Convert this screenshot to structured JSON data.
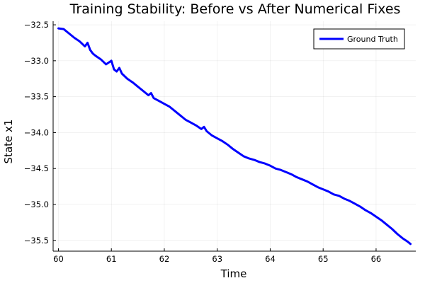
{
  "chart_data": {
    "type": "line",
    "title": "Training Stability: Before vs After Numerical Fixes",
    "xlabel": "Time",
    "ylabel": "State x1",
    "xlim": [
      59.9,
      66.75
    ],
    "ylim": [
      -35.65,
      -32.45
    ],
    "xticks": [
      60,
      61,
      62,
      63,
      64,
      65,
      66
    ],
    "yticks": [
      -32.5,
      -33.0,
      -33.5,
      -34.0,
      -34.5,
      -35.0,
      -35.5
    ],
    "xtick_labels": [
      "60",
      "61",
      "62",
      "63",
      "64",
      "65",
      "66"
    ],
    "ytick_labels": [
      "−32.5",
      "−33.0",
      "−33.5",
      "−34.0",
      "−34.5",
      "−35.0",
      "−35.5"
    ],
    "grid": true,
    "legend_position": "top-right",
    "series": [
      {
        "name": "Ground Truth",
        "color": "#0000ff",
        "x": [
          60.0,
          60.1,
          60.2,
          60.3,
          60.4,
          60.5,
          60.55,
          60.6,
          60.65,
          60.7,
          60.8,
          60.9,
          61.0,
          61.05,
          61.1,
          61.15,
          61.2,
          61.3,
          61.4,
          61.5,
          61.6,
          61.7,
          61.75,
          61.8,
          61.9,
          62.0,
          62.1,
          62.2,
          62.3,
          62.4,
          62.5,
          62.6,
          62.7,
          62.75,
          62.8,
          62.9,
          63.0,
          63.1,
          63.2,
          63.3,
          63.4,
          63.5,
          63.6,
          63.7,
          63.8,
          63.9,
          64.0,
          64.1,
          64.2,
          64.3,
          64.4,
          64.5,
          64.6,
          64.7,
          64.8,
          64.9,
          65.0,
          65.1,
          65.2,
          65.3,
          65.4,
          65.5,
          65.6,
          65.7,
          65.8,
          65.9,
          66.0,
          66.1,
          66.2,
          66.3,
          66.4,
          66.5,
          66.6,
          66.65
        ],
        "y": [
          -32.55,
          -32.56,
          -32.62,
          -32.68,
          -32.73,
          -32.8,
          -32.75,
          -32.85,
          -32.9,
          -32.93,
          -32.98,
          -33.05,
          -33.0,
          -33.12,
          -33.15,
          -33.1,
          -33.18,
          -33.25,
          -33.3,
          -33.36,
          -33.42,
          -33.48,
          -33.45,
          -33.52,
          -33.56,
          -33.6,
          -33.64,
          -33.7,
          -33.76,
          -33.82,
          -33.86,
          -33.9,
          -33.95,
          -33.92,
          -33.98,
          -34.04,
          -34.08,
          -34.12,
          -34.17,
          -34.23,
          -34.28,
          -34.33,
          -34.36,
          -34.38,
          -34.41,
          -34.43,
          -34.46,
          -34.5,
          -34.52,
          -34.55,
          -34.58,
          -34.62,
          -34.65,
          -34.68,
          -34.72,
          -34.76,
          -34.79,
          -34.82,
          -34.86,
          -34.88,
          -34.92,
          -34.95,
          -34.99,
          -35.03,
          -35.08,
          -35.12,
          -35.17,
          -35.22,
          -35.28,
          -35.34,
          -35.41,
          -35.47,
          -35.52,
          -35.55
        ]
      }
    ]
  }
}
